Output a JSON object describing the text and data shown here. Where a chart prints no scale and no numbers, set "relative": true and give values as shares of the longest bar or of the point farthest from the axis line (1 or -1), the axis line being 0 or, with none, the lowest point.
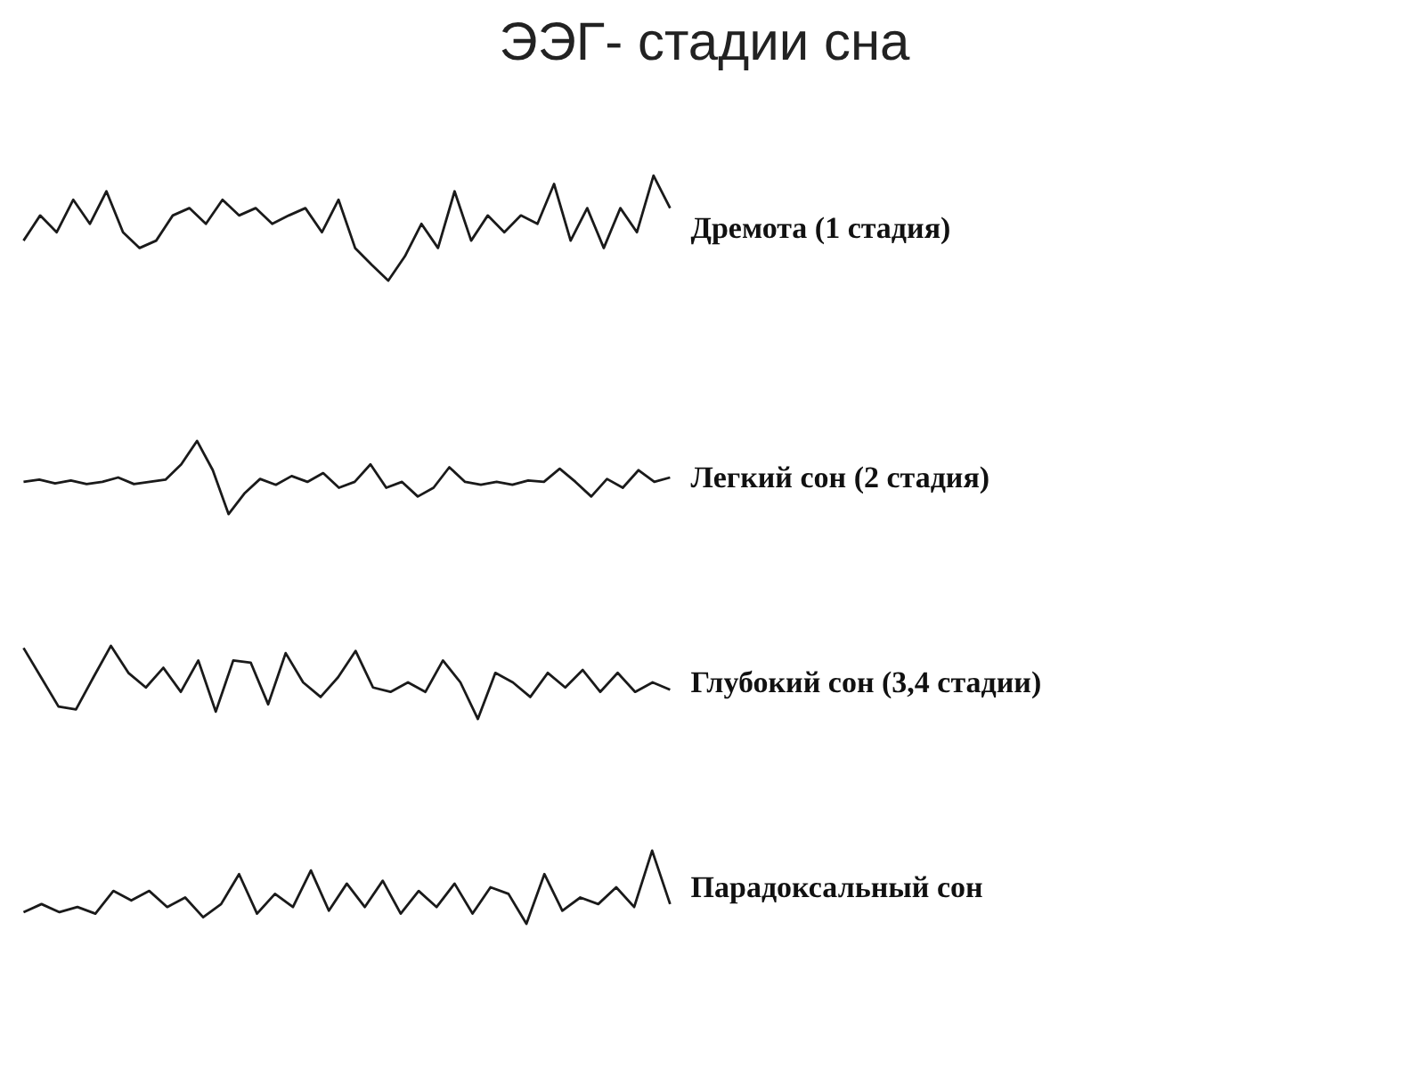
{
  "chart_data": [
    {
      "type": "line",
      "title": "ЭЭГ- стадии сна",
      "relative": true,
      "categories": [
        null,
        null,
        null,
        null,
        null,
        null,
        null,
        null,
        null,
        null,
        null,
        null,
        null,
        null,
        null,
        null,
        null,
        null,
        null,
        null,
        null,
        null,
        null,
        null,
        null,
        null,
        null,
        null,
        null,
        null,
        null,
        null,
        null,
        null,
        null,
        null,
        null,
        null,
        null,
        null
      ],
      "series": [
        {
          "name": "Дремота (1 стадия)",
          "color": "#1a1a1a",
          "values": [
            0.38,
            0.62,
            0.46,
            0.77,
            0.54,
            0.85,
            0.46,
            0.31,
            0.38,
            0.62,
            0.69,
            0.54,
            0.77,
            0.62,
            0.69,
            0.54,
            0.62,
            0.69,
            0.46,
            0.77,
            0.31,
            0.15,
            0,
            0.23,
            0.54,
            0.31,
            0.85,
            0.38,
            0.62,
            0.46,
            0.62,
            0.54,
            0.92,
            0.38,
            0.69,
            0.31,
            0.69,
            0.46,
            1,
            0.69
          ]
        }
      ]
    },
    {
      "type": "line",
      "relative": true,
      "categories": [
        null,
        null,
        null,
        null,
        null,
        null,
        null,
        null,
        null,
        null,
        null,
        null,
        null,
        null,
        null,
        null,
        null,
        null,
        null,
        null,
        null,
        null,
        null,
        null,
        null,
        null,
        null,
        null,
        null,
        null,
        null,
        null,
        null,
        null,
        null,
        null,
        null,
        null,
        null,
        null,
        null,
        null
      ],
      "series": [
        {
          "name": "Легкий сон (2 стадия)",
          "color": "#1a1a1a",
          "values": [
            0.44,
            0.47,
            0.42,
            0.46,
            0.41,
            0.44,
            0.5,
            0.41,
            0.44,
            0.47,
            0.68,
            1,
            0.6,
            0,
            0.28,
            0.48,
            0.4,
            0.52,
            0.44,
            0.56,
            0.36,
            0.44,
            0.68,
            0.36,
            0.44,
            0.24,
            0.36,
            0.64,
            0.44,
            0.4,
            0.44,
            0.4,
            0.46,
            0.44,
            0.62,
            0.44,
            0.24,
            0.48,
            0.36,
            0.6,
            0.44,
            0.5
          ]
        }
      ]
    },
    {
      "type": "line",
      "relative": true,
      "categories": [
        null,
        null,
        null,
        null,
        null,
        null,
        null,
        null,
        null,
        null,
        null,
        null,
        null,
        null,
        null,
        null,
        null,
        null,
        null,
        null,
        null,
        null,
        null,
        null,
        null,
        null,
        null,
        null,
        null,
        null,
        null,
        null,
        null,
        null,
        null,
        null,
        null,
        null
      ],
      "series": [
        {
          "name": "Глубокий сон (3,4 стадии)",
          "color": "#1a1a1a",
          "values": [
            0.97,
            0.57,
            0.17,
            0.13,
            0.57,
            1,
            0.63,
            0.43,
            0.7,
            0.37,
            0.8,
            0.1,
            0.8,
            0.77,
            0.2,
            0.9,
            0.5,
            0.3,
            0.57,
            0.93,
            0.43,
            0.37,
            0.5,
            0.37,
            0.8,
            0.5,
            0,
            0.63,
            0.5,
            0.3,
            0.63,
            0.43,
            0.67,
            0.37,
            0.63,
            0.37,
            0.5,
            0.4
          ]
        }
      ]
    },
    {
      "type": "line",
      "relative": true,
      "categories": [
        null,
        null,
        null,
        null,
        null,
        null,
        null,
        null,
        null,
        null,
        null,
        null,
        null,
        null,
        null,
        null,
        null,
        null,
        null,
        null,
        null,
        null,
        null,
        null,
        null,
        null,
        null,
        null,
        null,
        null,
        null,
        null,
        null,
        null,
        null,
        null,
        null
      ],
      "series": [
        {
          "name": "Парадоксальный сон",
          "color": "#1a1a1a",
          "values": [
            0.16,
            0.27,
            0.16,
            0.23,
            0.14,
            0.45,
            0.32,
            0.45,
            0.23,
            0.36,
            0.09,
            0.27,
            0.68,
            0.14,
            0.41,
            0.23,
            0.73,
            0.18,
            0.55,
            0.23,
            0.59,
            0.14,
            0.45,
            0.23,
            0.55,
            0.14,
            0.5,
            0.41,
            0,
            0.68,
            0.18,
            0.36,
            0.27,
            0.5,
            0.23,
            1,
            0.27
          ]
        }
      ]
    }
  ]
}
